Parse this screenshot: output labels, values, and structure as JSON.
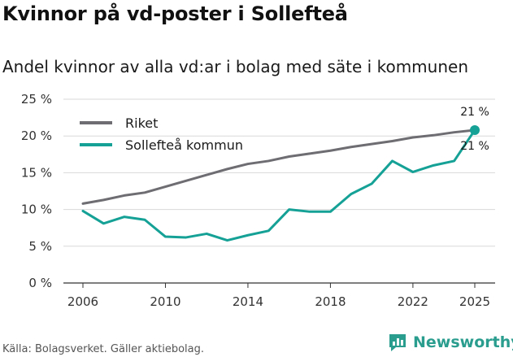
{
  "header": {
    "title": "Kvinnor på vd-poster i Sollefteå",
    "subtitle": "Andel kvinnor av alla vd:ar i bolag med säte i kommunen"
  },
  "footer": {
    "source": "Källa: Bolagsverket. Gäller aktiebolag.",
    "brand": "Newsworthy"
  },
  "colors": {
    "riket": "#6d6d72",
    "kommun": "#15a196",
    "grid": "#d9d9d9"
  },
  "chart_data": {
    "type": "line",
    "title": "Kvinnor på vd-poster i Sollefteå",
    "subtitle": "Andel kvinnor av alla vd:ar i bolag med säte i kommunen",
    "xlabel": "",
    "ylabel": "",
    "x": [
      2006,
      2007,
      2008,
      2009,
      2010,
      2011,
      2012,
      2013,
      2014,
      2015,
      2016,
      2017,
      2018,
      2019,
      2020,
      2021,
      2022,
      2023,
      2024,
      2025
    ],
    "xticks": [
      "2006",
      "2010",
      "2014",
      "2018",
      "2022",
      "2025"
    ],
    "yticks": [
      "0 %",
      "5 %",
      "10 %",
      "15 %",
      "20 %",
      "25 %"
    ],
    "ylim": [
      0,
      25
    ],
    "grid": true,
    "legend_position": "top-left",
    "series": [
      {
        "name": "Riket",
        "values": [
          10.8,
          11.3,
          11.9,
          12.3,
          13.1,
          13.9,
          14.7,
          15.5,
          16.2,
          16.6,
          17.2,
          17.6,
          18.0,
          18.5,
          18.9,
          19.3,
          19.8,
          20.1,
          20.5,
          20.8
        ],
        "end_label": "21 %"
      },
      {
        "name": "Sollefteå kommun",
        "values": [
          9.8,
          8.1,
          9.0,
          8.6,
          6.3,
          6.2,
          6.7,
          5.8,
          6.5,
          7.1,
          10.0,
          9.7,
          9.7,
          12.1,
          13.5,
          16.6,
          15.1,
          16.0,
          16.6,
          20.8
        ],
        "end_label": "21 %"
      }
    ]
  }
}
